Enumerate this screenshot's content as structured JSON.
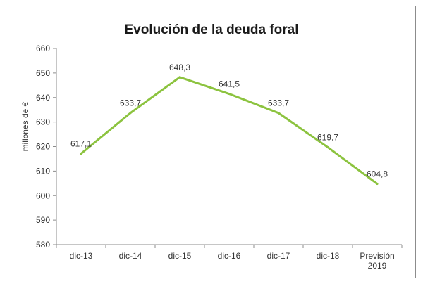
{
  "chart_data": {
    "type": "line",
    "title": "Evolución de la deuda foral",
    "xlabel": "",
    "ylabel": "millones de €",
    "categories": [
      "dic-13",
      "dic-14",
      "dic-15",
      "dic-16",
      "dic-17",
      "dic-18",
      "Previsión 2019"
    ],
    "series": [
      {
        "values": [
          617.1,
          633.7,
          648.3,
          641.5,
          633.7,
          619.7,
          604.8
        ],
        "data_labels": [
          "617,1",
          "633,7",
          "648,3",
          "641,5",
          "633,7",
          "619,7",
          "604,8"
        ],
        "color": "#8cc33f"
      }
    ],
    "ylim": [
      580,
      660
    ],
    "yticks": [
      580,
      590,
      600,
      610,
      620,
      630,
      640,
      650,
      660
    ],
    "grid": false,
    "legend": "none"
  }
}
